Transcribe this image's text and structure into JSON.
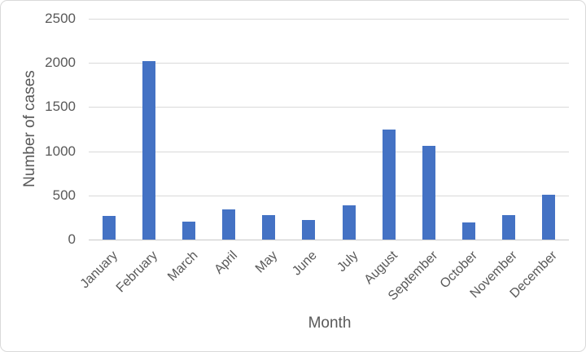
{
  "chart_data": {
    "type": "bar",
    "title": "",
    "categories": [
      "January",
      "February",
      "March",
      "April",
      "May",
      "June",
      "July",
      "August",
      "September",
      "October",
      "November",
      "December"
    ],
    "values": [
      270,
      2020,
      200,
      345,
      280,
      225,
      390,
      1245,
      1060,
      190,
      280,
      510
    ],
    "xlabel": "Month",
    "ylabel": "Number of cases",
    "ylim": [
      0,
      2500
    ],
    "yticks": [
      0,
      500,
      1000,
      1500,
      2000,
      2500
    ],
    "grid": true,
    "legend": false,
    "colors": {
      "bar": "#4472c4",
      "gridline": "#d9d9d9",
      "axis_line": "#c8c8c8",
      "axis_text": "#595959",
      "frame_border": "#d9d9d9",
      "background": "#ffffff"
    }
  }
}
